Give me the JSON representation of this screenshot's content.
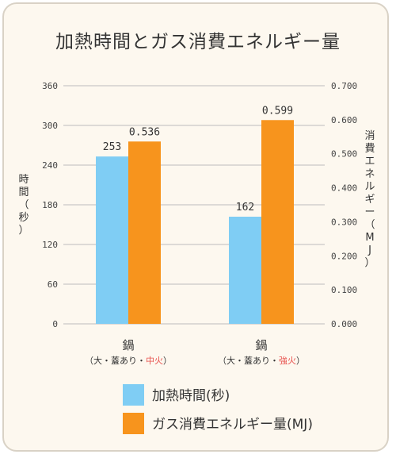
{
  "chart_data": {
    "type": "bar",
    "title": "加熱時間とガス消費エネルギー量",
    "categories": [
      {
        "name": "鍋",
        "note_open": "（大・蓋あり・",
        "note_em": "中火",
        "note_close": "）"
      },
      {
        "name": "鍋",
        "note_open": "（大・蓋あり・",
        "note_em": "強火",
        "note_close": "）"
      }
    ],
    "emphasis_color": "#e8534f",
    "left_axis": {
      "label": [
        "時",
        "間",
        "（",
        "秒",
        "）"
      ],
      "ylim": [
        0,
        360
      ],
      "ticks": [
        "0",
        "60",
        "120",
        "180",
        "240",
        "300",
        "360"
      ]
    },
    "right_axis": {
      "label": [
        "消",
        "費",
        "エ",
        "ネ",
        "ル",
        "ギ",
        "ー",
        "（",
        "M",
        "J",
        "）"
      ],
      "ylim": [
        0,
        0.7
      ],
      "ticks": [
        "0.000",
        "0.100",
        "0.200",
        "0.300",
        "0.400",
        "0.500",
        "0.600",
        "0.700"
      ]
    },
    "series": [
      {
        "name": "加熱時間(秒)",
        "axis": "left",
        "color": "#7fcdf4",
        "values": [
          253,
          162
        ],
        "labels": [
          "253",
          "162"
        ]
      },
      {
        "name": "ガス消費エネルギー量(MJ)",
        "axis": "right",
        "color": "#f7941d",
        "values": [
          0.536,
          0.599
        ],
        "labels": [
          "0.536",
          "0.599"
        ]
      }
    ],
    "grid": true,
    "legend_position": "bottom"
  }
}
